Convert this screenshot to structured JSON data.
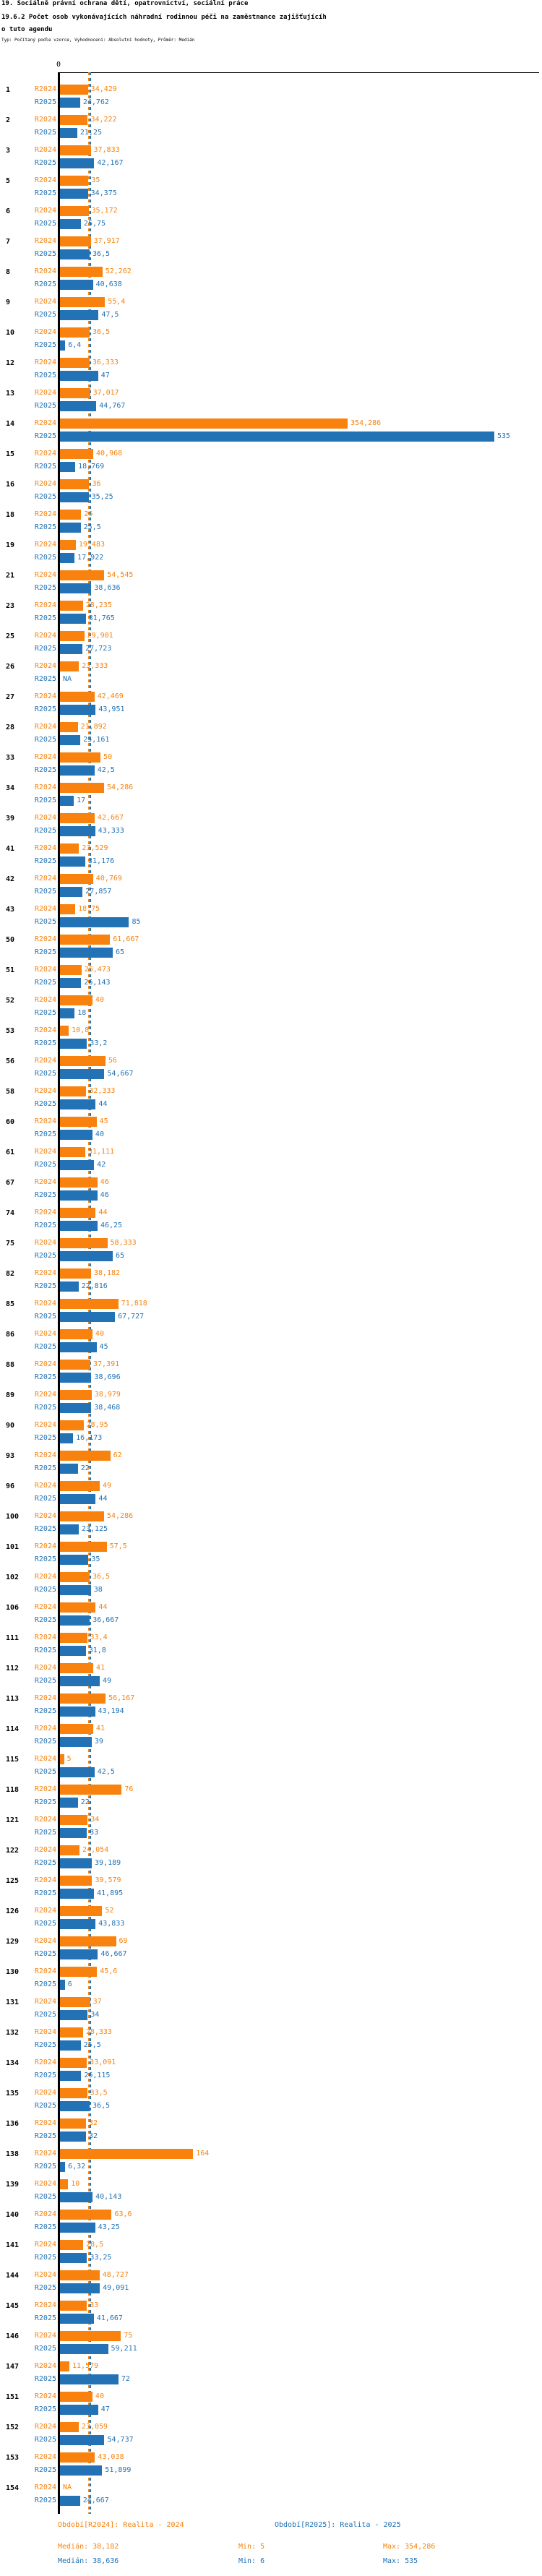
{
  "header": {
    "title": "19. Sociálně právní ochrana dětí, opatrovnictví, sociální práce",
    "subtitle": "19.6.2 Počet osob vykonávajících náhradní rodinnou péči na zaměstnance zajišťujícího tuto agendu",
    "meta": "Typ: Počítaný podle vzorce, Vyhodnocení: Absolutní hodnoty, Průměr: Medián"
  },
  "colors": {
    "r2024": "#F8820D",
    "r2025": "#2272B5"
  },
  "axis": {
    "zero_label": "0"
  },
  "footer": {
    "legend_r2024": "Období[R2024]: Realita - 2024",
    "legend_r2025": "Období[R2025]: Realita - 2025",
    "stats_r2024": {
      "median": "Medián: 38,182",
      "min": "Min: 5",
      "max": "Max: 354,286"
    },
    "stats_r2025": {
      "median": "Medián: 38,636",
      "min": "Min: 6",
      "max": "Max: 535"
    }
  },
  "chart_data": {
    "type": "bar",
    "orientation": "horizontal",
    "title": "19.6.2 Počet osob vykonávajících náhradní rodinnou péči na zaměstnance zajišťujícího tuto agendu",
    "xlim": [
      0,
      590
    ],
    "grid": false,
    "legend_position": "bottom",
    "median_markers": {
      "R2024": 38.182,
      "R2025": 38.636
    },
    "categories": [
      "1",
      "2",
      "3",
      "5",
      "6",
      "7",
      "8",
      "9",
      "10",
      "12",
      "13",
      "14",
      "15",
      "16",
      "18",
      "19",
      "21",
      "23",
      "25",
      "26",
      "27",
      "28",
      "33",
      "34",
      "39",
      "41",
      "42",
      "43",
      "50",
      "51",
      "52",
      "53",
      "56",
      "58",
      "60",
      "61",
      "67",
      "74",
      "75",
      "82",
      "85",
      "86",
      "88",
      "89",
      "90",
      "93",
      "96",
      "100",
      "101",
      "102",
      "106",
      "111",
      "112",
      "113",
      "114",
      "115",
      "118",
      "121",
      "122",
      "125",
      "126",
      "129",
      "130",
      "131",
      "132",
      "134",
      "135",
      "136",
      "138",
      "139",
      "140",
      "141",
      "144",
      "145",
      "146",
      "147",
      "151",
      "152",
      "153",
      "154"
    ],
    "series": [
      {
        "name": "R2024",
        "color": "#F8820D",
        "values": [
          34.429,
          34.222,
          37.833,
          35,
          35.172,
          37.917,
          52.262,
          55.4,
          36.5,
          36.333,
          37.017,
          354.286,
          40.968,
          36,
          26,
          19.483,
          54.545,
          28.235,
          29.901,
          23.333,
          42.469,
          21.892,
          50,
          54.286,
          42.667,
          23.529,
          40.769,
          18.75,
          61.667,
          26.473,
          40,
          10.8,
          56,
          32.333,
          45,
          31.111,
          46,
          44,
          58.333,
          38.182,
          71.818,
          40,
          37.391,
          38.979,
          28.95,
          62,
          49,
          54.286,
          57.5,
          36.5,
          44,
          33.4,
          41,
          56.167,
          41,
          5,
          76,
          34,
          24.054,
          39.579,
          52,
          69,
          45.6,
          37,
          28.333,
          33.091,
          33.5,
          32,
          164,
          10,
          63.6,
          28.5,
          48.727,
          33,
          75,
          11.579,
          40,
          23.059,
          43.038,
          null
        ],
        "labels": [
          "34,429",
          "34,222",
          "37,833",
          "35",
          "35,172",
          "37,917",
          "52,262",
          "55,4",
          "36,5",
          "36,333",
          "37,017",
          "354,286",
          "40,968",
          "36",
          "26",
          "19,483",
          "54,545",
          "28,235",
          "29,901",
          "23,333",
          "42,469",
          "21,892",
          "50",
          "54,286",
          "42,667",
          "23,529",
          "40,769",
          "18,75",
          "61,667",
          "26,473",
          "40",
          "10,8",
          "56",
          "32,333",
          "45",
          "31,111",
          "46",
          "44",
          "58,333",
          "38,182",
          "71,818",
          "40",
          "37,391",
          "38,979",
          "28,95",
          "62",
          "49",
          "54,286",
          "57,5",
          "36,5",
          "44",
          "33,4",
          "41",
          "56,167",
          "41",
          "5",
          "76",
          "34",
          "24,054",
          "39,579",
          "52",
          "69",
          "45,6",
          "37",
          "28,333",
          "33,091",
          "33,5",
          "32",
          "164",
          "10",
          "63,6",
          "28,5",
          "48,727",
          "33",
          "75",
          "11,579",
          "40",
          "23,059",
          "43,038",
          "NA"
        ]
      },
      {
        "name": "R2025",
        "color": "#2272B5",
        "values": [
          24.762,
          21.25,
          42.167,
          34.375,
          25.75,
          36.5,
          40.638,
          47.5,
          6.4,
          47,
          44.767,
          535,
          18.769,
          35.25,
          25.5,
          17.922,
          38.636,
          31.765,
          27.723,
          null,
          43.951,
          25.161,
          42.5,
          17,
          43.333,
          31.176,
          27.857,
          85,
          65,
          26.143,
          18,
          33.2,
          54.667,
          44,
          40,
          42,
          46,
          46.25,
          65,
          22.816,
          67.727,
          45,
          38.696,
          38.468,
          16.173,
          22,
          44,
          23.125,
          35,
          38,
          36.667,
          31.8,
          49,
          43.194,
          39,
          42.5,
          22,
          33,
          39.189,
          41.895,
          43.833,
          46.667,
          6,
          34,
          25.5,
          26.115,
          36.5,
          32,
          6.32,
          40.143,
          43.25,
          33.25,
          49.091,
          41.667,
          59.211,
          72,
          47,
          54.737,
          51.899,
          24.667
        ],
        "labels": [
          "24,762",
          "21,25",
          "42,167",
          "34,375",
          "25,75",
          "36,5",
          "40,638",
          "47,5",
          "6,4",
          "47",
          "44,767",
          "535",
          "18,769",
          "35,25",
          "25,5",
          "17,922",
          "38,636",
          "31,765",
          "27,723",
          "NA",
          "43,951",
          "25,161",
          "42,5",
          "17",
          "43,333",
          "31,176",
          "27,857",
          "85",
          "65",
          "26,143",
          "18",
          "33,2",
          "54,667",
          "44",
          "40",
          "42",
          "46",
          "46,25",
          "65",
          "22,816",
          "67,727",
          "45",
          "38,696",
          "38,468",
          "16,173",
          "22",
          "44",
          "23,125",
          "35",
          "38",
          "36,667",
          "31,8",
          "49",
          "43,194",
          "39",
          "42,5",
          "22",
          "33",
          "39,189",
          "41,895",
          "43,833",
          "46,667",
          "6",
          "34",
          "25,5",
          "26,115",
          "36,5",
          "32",
          "6,32",
          "40,143",
          "43,25",
          "33,25",
          "49,091",
          "41,667",
          "59,211",
          "72",
          "47",
          "54,737",
          "51,899",
          "24,667"
        ]
      }
    ]
  }
}
